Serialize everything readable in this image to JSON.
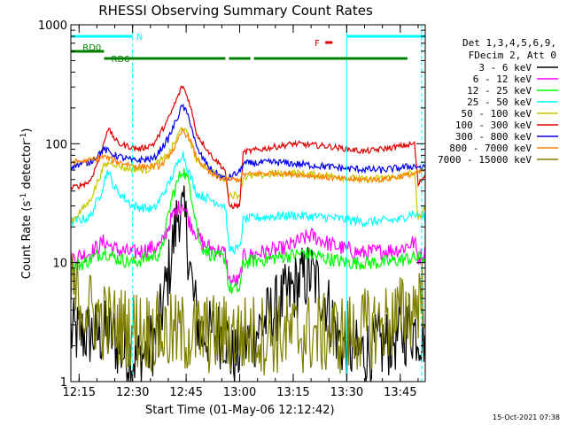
{
  "chart_data": {
    "type": "line",
    "title": "RHESSI Observing Summary Count Rates",
    "xlabel": "Start Time (01-May-06 12:12:42)",
    "ylabel": "Count Rate (s⁻¹ detector⁻¹)",
    "ylabel_main": "Count Rate (s",
    "ylabel_sup1": "-1",
    "ylabel_mid": " detector",
    "ylabel_sup2": "-1",
    "ylabel_end": ")",
    "y_scale": "log",
    "ylim": [
      1,
      1000
    ],
    "xlim": [
      "12:12:42",
      "13:52:00"
    ],
    "x_ticks": [
      "12:15",
      "12:30",
      "12:45",
      "13:00",
      "13:15",
      "13:30",
      "13:45"
    ],
    "y_ticks": [
      "1",
      "10",
      "100",
      "1000"
    ],
    "timestamp": "15-Oct-2021 07:38",
    "legend_header": [
      "Det 1,3,4,5,6,9,",
      "FDecim 2, Att 0"
    ],
    "legend_position": "right",
    "flags": [
      {
        "label": "N",
        "color": "#00ffff",
        "segments": [
          [
            "12:12:42",
            "12:30:00"
          ],
          [
            "13:30:00",
            "13:52:00"
          ]
        ],
        "label_at": "12:31:00"
      },
      {
        "label": "RD0",
        "color": "#008000",
        "segments": [
          [
            "12:12:42",
            "12:22:00"
          ]
        ],
        "label_at": "12:16:00"
      },
      {
        "label": "RD6",
        "color": "#008000",
        "segments": [
          [
            "12:22:00",
            "12:56:00"
          ],
          [
            "12:57:00",
            "13:03:00"
          ],
          [
            "13:04:00",
            "13:47:00"
          ]
        ],
        "label_at": "12:24:00"
      },
      {
        "label": "F",
        "color": "#dd0000",
        "segments": [
          [
            "13:24:00",
            "13:26:00"
          ]
        ],
        "label_at": "13:21:00"
      }
    ],
    "vlines": [
      {
        "time": "12:12:42",
        "style": "solid"
      },
      {
        "time": "12:30:00",
        "style": "dashed"
      },
      {
        "time": "13:30:00",
        "style": "solid"
      },
      {
        "time": "13:51:00",
        "style": "dashed"
      }
    ],
    "series": [
      {
        "name": "3 - 6 keV",
        "color": "#000000",
        "noise": 0.3,
        "points": [
          [
            "12:12:42",
            2.5
          ],
          [
            "12:24:00",
            2.5
          ],
          [
            "12:27:00",
            1.8
          ],
          [
            "12:32:00",
            1.5
          ],
          [
            "12:37:00",
            2.5
          ],
          [
            "12:40:00",
            8
          ],
          [
            "12:43:00",
            30
          ],
          [
            "12:45:00",
            20
          ],
          [
            "12:47:00",
            5
          ],
          [
            "12:49:00",
            2.5
          ],
          [
            "12:56:00",
            2.5
          ],
          [
            "12:58:00",
            1.5
          ],
          [
            "13:00:00",
            1.8
          ],
          [
            "13:04:00",
            2.5
          ],
          [
            "13:10:00",
            4
          ],
          [
            "13:17:00",
            7
          ],
          [
            "13:20:00",
            8
          ],
          [
            "13:24:00",
            5
          ],
          [
            "13:28:00",
            2.2
          ],
          [
            "13:33:00",
            1.7
          ],
          [
            "13:40:00",
            2
          ],
          [
            "13:48:00",
            2.8
          ],
          [
            "13:52:00",
            2.5
          ]
        ]
      },
      {
        "name": "6 - 12 keV",
        "color": "#ff00ff",
        "noise": 0.07,
        "points": [
          [
            "12:12:42",
            11
          ],
          [
            "12:18:00",
            12
          ],
          [
            "12:22:00",
            15
          ],
          [
            "12:25:00",
            13
          ],
          [
            "12:30:00",
            12
          ],
          [
            "12:38:00",
            14
          ],
          [
            "12:41:00",
            24
          ],
          [
            "12:44:00",
            32
          ],
          [
            "12:46:00",
            22
          ],
          [
            "12:50:00",
            14
          ],
          [
            "12:56:00",
            12
          ],
          [
            "12:57:00",
            7
          ],
          [
            "13:00:00",
            7
          ],
          [
            "13:01:00",
            11
          ],
          [
            "13:05:00",
            12
          ],
          [
            "13:12:00",
            13
          ],
          [
            "13:20:00",
            17
          ],
          [
            "13:26:00",
            14
          ],
          [
            "13:34:00",
            12
          ],
          [
            "13:45:00",
            13
          ],
          [
            "13:49:00",
            15
          ],
          [
            "13:50:00",
            11
          ],
          [
            "13:52:00",
            12
          ]
        ]
      },
      {
        "name": "12 - 25 keV",
        "color": "#00ff00",
        "noise": 0.06,
        "points": [
          [
            "12:12:42",
            9
          ],
          [
            "12:18:00",
            10.5
          ],
          [
            "12:22:00",
            12.5
          ],
          [
            "12:25:00",
            11
          ],
          [
            "12:30:00",
            10
          ],
          [
            "12:38:00",
            12
          ],
          [
            "12:41:00",
            35
          ],
          [
            "12:44:00",
            62
          ],
          [
            "12:46:00",
            45
          ],
          [
            "12:49:00",
            14
          ],
          [
            "12:53:00",
            11
          ],
          [
            "12:56:00",
            11
          ],
          [
            "12:57:00",
            6
          ],
          [
            "13:00:00",
            6
          ],
          [
            "13:01:00",
            10
          ],
          [
            "13:10:00",
            11
          ],
          [
            "13:18:00",
            12
          ],
          [
            "13:30:00",
            10
          ],
          [
            "13:40:00",
            10
          ],
          [
            "13:49:00",
            11
          ],
          [
            "13:52:00",
            11
          ]
        ]
      },
      {
        "name": "25 - 50 keV",
        "color": "#00ffff",
        "noise": 0.04,
        "points": [
          [
            "12:12:42",
            22
          ],
          [
            "12:18:00",
            24
          ],
          [
            "12:21:00",
            38
          ],
          [
            "12:23:00",
            60
          ],
          [
            "12:25:00",
            42
          ],
          [
            "12:30:00",
            30
          ],
          [
            "12:36:00",
            28
          ],
          [
            "12:40:00",
            45
          ],
          [
            "12:44:00",
            85
          ],
          [
            "12:46:00",
            55
          ],
          [
            "12:48:00",
            38
          ],
          [
            "12:56:00",
            30
          ],
          [
            "12:57:00",
            13
          ],
          [
            "13:00:00",
            13
          ],
          [
            "13:01:00",
            23
          ],
          [
            "13:05:00",
            24
          ],
          [
            "13:15:00",
            25
          ],
          [
            "13:25:00",
            24
          ],
          [
            "13:35:00",
            22
          ],
          [
            "13:45:00",
            23
          ],
          [
            "13:48:00",
            26
          ],
          [
            "13:52:00",
            24
          ]
        ]
      },
      {
        "name": "50 - 100 keV",
        "color": "#c8c800",
        "noise": 0.03,
        "points": [
          [
            "12:12:42",
            22
          ],
          [
            "12:18:00",
            33
          ],
          [
            "12:22:00",
            65
          ],
          [
            "12:24:00",
            70
          ],
          [
            "12:28:00",
            62
          ],
          [
            "12:34:00",
            60
          ],
          [
            "12:40:00",
            80
          ],
          [
            "12:44:00",
            140
          ],
          [
            "12:46:00",
            110
          ],
          [
            "12:48:00",
            72
          ],
          [
            "12:56:00",
            50
          ],
          [
            "12:57:00",
            37
          ],
          [
            "13:00:00",
            37
          ],
          [
            "13:01:00",
            52
          ],
          [
            "13:05:00",
            54
          ],
          [
            "13:15:00",
            57
          ],
          [
            "13:25:00",
            54
          ],
          [
            "13:35:00",
            50
          ],
          [
            "13:45:00",
            53
          ],
          [
            "13:49:00",
            58
          ],
          [
            "13:50:00",
            22
          ],
          [
            "13:52:00",
            30
          ]
        ]
      },
      {
        "name": "100 - 300 keV",
        "color": "#dd0000",
        "noise": 0.025,
        "points": [
          [
            "12:12:42",
            42
          ],
          [
            "12:18:00",
            48
          ],
          [
            "12:21:00",
            80
          ],
          [
            "12:23:00",
            135
          ],
          [
            "12:26:00",
            100
          ],
          [
            "12:32:00",
            90
          ],
          [
            "12:36:00",
            100
          ],
          [
            "12:40:00",
            160
          ],
          [
            "12:44:00",
            310
          ],
          [
            "12:46:00",
            220
          ],
          [
            "12:48:00",
            120
          ],
          [
            "12:52:00",
            80
          ],
          [
            "12:56:00",
            60
          ],
          [
            "12:57:00",
            30
          ],
          [
            "13:00:00",
            30
          ],
          [
            "13:01:00",
            85
          ],
          [
            "13:08:00",
            92
          ],
          [
            "13:15:00",
            100
          ],
          [
            "13:25:00",
            95
          ],
          [
            "13:35:00",
            86
          ],
          [
            "13:45:00",
            95
          ],
          [
            "13:49:00",
            100
          ],
          [
            "13:50:00",
            45
          ],
          [
            "13:52:00",
            55
          ]
        ]
      },
      {
        "name": "300 - 800 keV",
        "color": "#0000ee",
        "noise": 0.03,
        "points": [
          [
            "12:12:42",
            65
          ],
          [
            "12:18:00",
            70
          ],
          [
            "12:22:00",
            90
          ],
          [
            "12:25:00",
            80
          ],
          [
            "12:30:00",
            72
          ],
          [
            "12:36:00",
            75
          ],
          [
            "12:40:00",
            110
          ],
          [
            "12:44:00",
            210
          ],
          [
            "12:46:00",
            160
          ],
          [
            "12:48:00",
            90
          ],
          [
            "12:52:00",
            60
          ],
          [
            "12:56:00",
            50
          ],
          [
            "13:00:00",
            58
          ],
          [
            "13:01:00",
            68
          ],
          [
            "13:10:00",
            70
          ],
          [
            "13:20:00",
            66
          ],
          [
            "13:30:00",
            62
          ],
          [
            "13:40:00",
            60
          ],
          [
            "13:49:00",
            65
          ],
          [
            "13:52:00",
            62
          ]
        ]
      },
      {
        "name": "800 - 7000 keV",
        "color": "#ff8000",
        "noise": 0.025,
        "points": [
          [
            "12:12:42",
            70
          ],
          [
            "12:18:00",
            72
          ],
          [
            "12:22:00",
            78
          ],
          [
            "12:26:00",
            70
          ],
          [
            "12:32:00",
            64
          ],
          [
            "12:38:00",
            65
          ],
          [
            "12:42:00",
            95
          ],
          [
            "12:44:00",
            130
          ],
          [
            "12:46:00",
            110
          ],
          [
            "12:48:00",
            75
          ],
          [
            "12:52:00",
            55
          ],
          [
            "12:56:00",
            50
          ],
          [
            "13:00:00",
            50
          ],
          [
            "13:01:00",
            55
          ],
          [
            "13:10:00",
            57
          ],
          [
            "13:20:00",
            54
          ],
          [
            "13:30:00",
            50
          ],
          [
            "13:40:00",
            50
          ],
          [
            "13:49:00",
            56
          ],
          [
            "13:52:00",
            60
          ]
        ]
      },
      {
        "name": "7000 - 15000 keV",
        "color": "#808000",
        "noise": 0.35,
        "points": [
          [
            "12:12:42",
            6
          ],
          [
            "12:16:00",
            4.5
          ],
          [
            "12:20:00",
            3.5
          ],
          [
            "12:24:00",
            3
          ],
          [
            "12:30:00",
            2.8
          ],
          [
            "12:40:00",
            2.5
          ],
          [
            "12:50:00",
            2.5
          ],
          [
            "13:00:00",
            2.5
          ],
          [
            "13:10:00",
            2.5
          ],
          [
            "13:20:00",
            2.5
          ],
          [
            "13:30:00",
            2.5
          ],
          [
            "13:40:00",
            3
          ],
          [
            "13:48:00",
            4
          ],
          [
            "13:52:00",
            6
          ]
        ]
      }
    ]
  }
}
